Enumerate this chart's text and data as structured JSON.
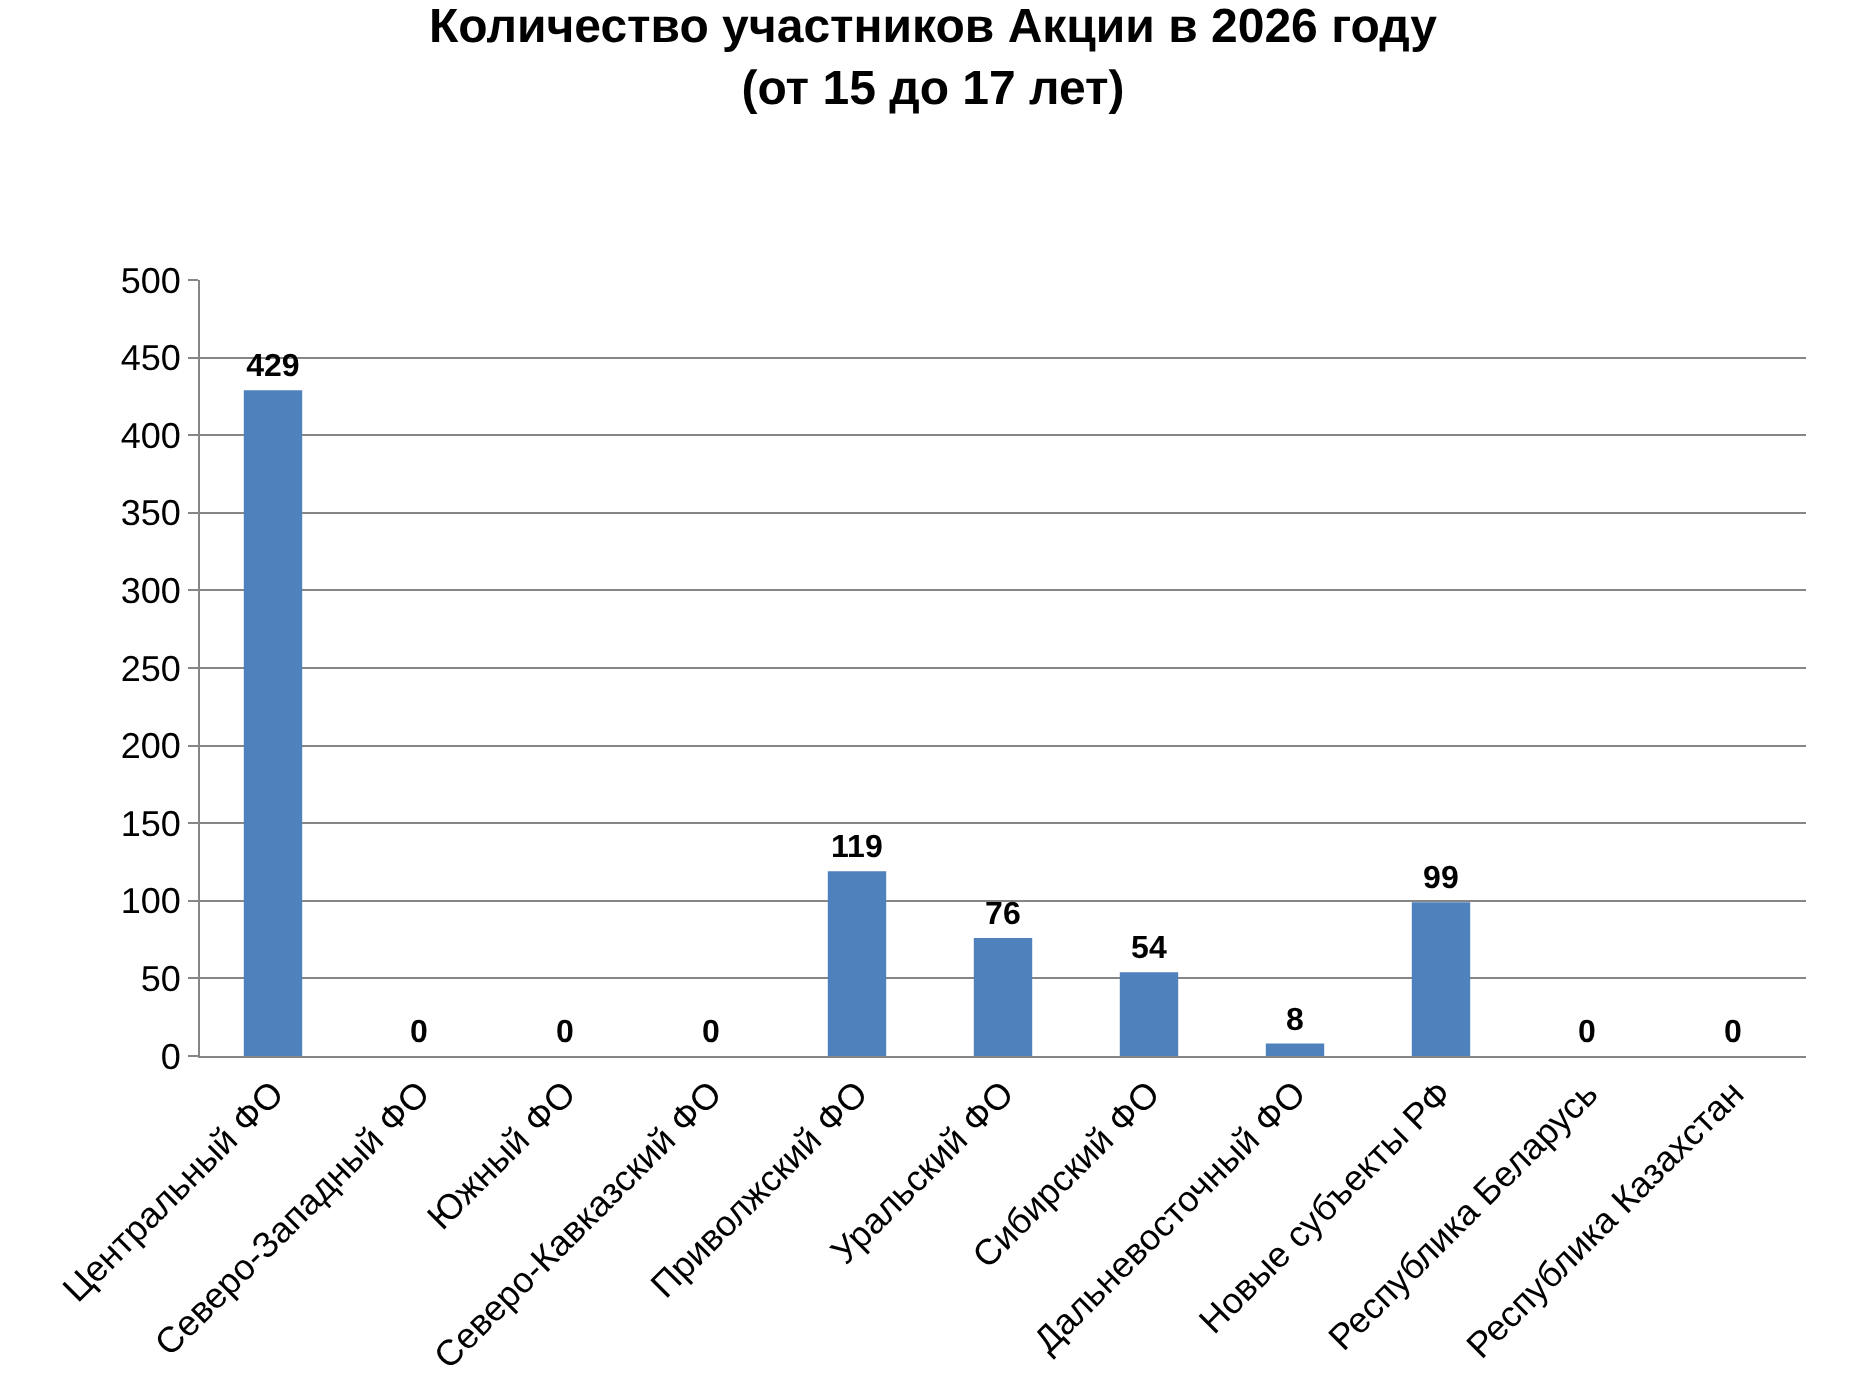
{
  "chart_data": {
    "type": "bar",
    "title": "Количество участников Акции в 2026 году\n(от 15 до 17 лет)",
    "categories": [
      "Центральный ФО",
      "Северо-Западный ФО",
      "Южный ФО",
      "Северо-Кавказский ФО",
      "Приволжский ФО",
      "Уральский ФО",
      "Сибирский ФО",
      "Дальневосточный ФО",
      "Новые субъекты РФ",
      "Республика Беларусь",
      "Республика Казахстан"
    ],
    "values": [
      429,
      0,
      0,
      0,
      119,
      76,
      54,
      8,
      99,
      0,
      0
    ],
    "color": "#4f81bd",
    "ylim": [
      0,
      500
    ],
    "yticks": [
      0,
      50,
      100,
      150,
      200,
      250,
      300,
      350,
      400,
      450,
      500
    ],
    "grid": "y",
    "data_labels": true,
    "legend": false
  }
}
